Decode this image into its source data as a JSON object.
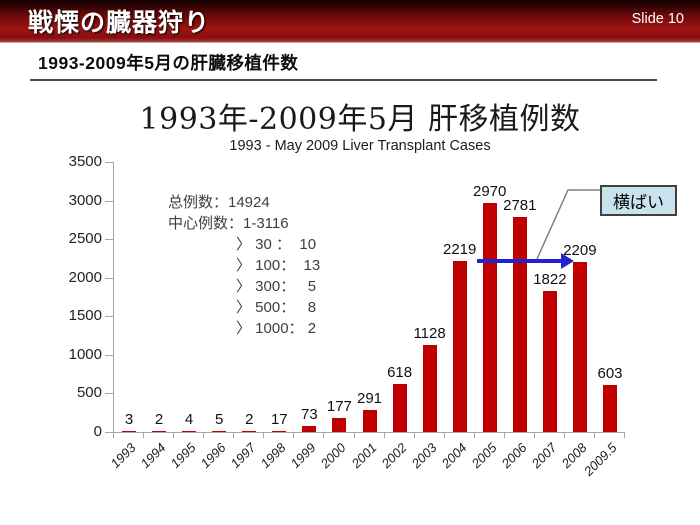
{
  "header": {
    "title": "戦慄の臓器狩り",
    "slide_number": "Slide 10"
  },
  "subheader": {
    "title": "1993-2009年5月の肝臓移植件数"
  },
  "chart_data": {
    "type": "bar",
    "title": "1993年-2009年5月 肝移植例数",
    "subtitle": "1993 - May 2009 Liver Transplant Cases",
    "categories": [
      "1993",
      "1994",
      "1995",
      "1996",
      "1997",
      "1998",
      "1999",
      "2000",
      "2001",
      "2002",
      "2003",
      "2004",
      "2005",
      "2006",
      "2007",
      "2008",
      "2009.5"
    ],
    "values": [
      3,
      2,
      4,
      5,
      2,
      17,
      73,
      177,
      291,
      618,
      1128,
      2219,
      2970,
      2781,
      1822,
      2209,
      603
    ],
    "xlabel": "",
    "ylabel": "",
    "ylim": [
      0,
      3500
    ],
    "ytick_step": 500,
    "grid": false,
    "bar_color": "#C00000",
    "annotations": {
      "total_label": "总例数：14924",
      "center_label": "中心例数：1-3116",
      "breakdown": [
        "〉 30 ：  10",
        "〉 100：  13",
        "〉 300：   5",
        "〉 500：   8",
        "〉 1000： 2"
      ],
      "callout_label": "横ばい",
      "trend_arrow": {
        "level": 2200,
        "from_category": "2004",
        "to_category": "2008"
      }
    }
  },
  "colors": {
    "header_red": "#8E1010",
    "bar_red": "#C00000",
    "arrow_blue": "#2222CC",
    "callout_bg": "#C9E3EE",
    "callout_border": "#404040",
    "line_gray": "#808080",
    "underline_gray": "#4D4D4D"
  }
}
